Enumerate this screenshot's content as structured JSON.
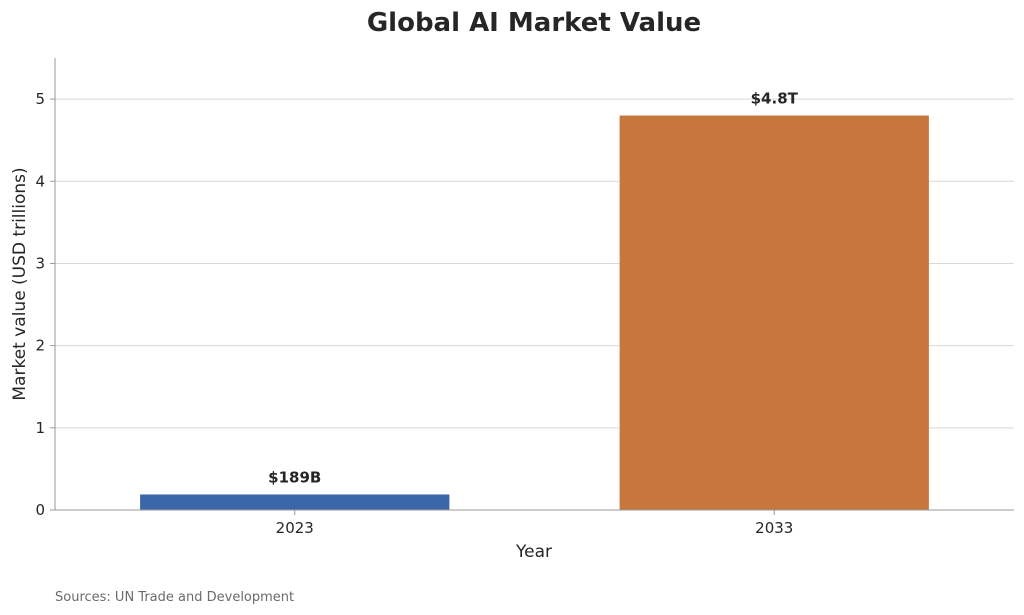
{
  "chart_data": {
    "type": "bar",
    "title": "Global AI Market Value",
    "xlabel": "Year",
    "ylabel": "Market value (USD trillions)",
    "categories": [
      "2023",
      "2033"
    ],
    "values": [
      0.189,
      4.8
    ],
    "data_labels": [
      "$189B",
      "$4.8T"
    ],
    "colors": [
      "#3b67a8",
      "#c8773c"
    ],
    "ylim": [
      0,
      5.5
    ],
    "yticks": [
      0,
      1,
      2,
      3,
      4,
      5
    ],
    "grid": "horizontal"
  },
  "source_note": "Sources: UN Trade and Development"
}
